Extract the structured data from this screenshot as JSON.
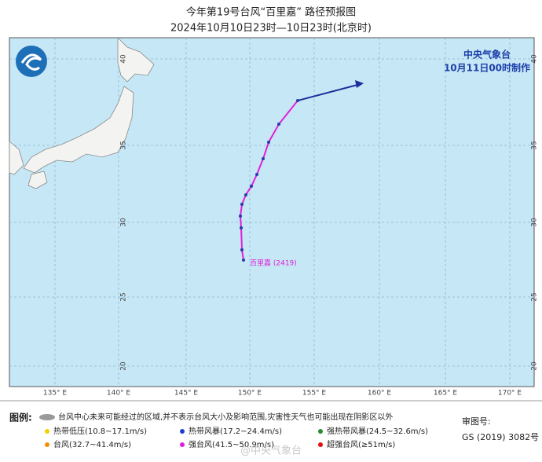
{
  "header": {
    "title": "今年第19号台风“百里嘉” 路径预报图",
    "subtitle": "2024年10月10日23时—10日23时(北京时)"
  },
  "map": {
    "agency": "中央气象台",
    "issued": "10月11日00时制作",
    "storm_label": "百里嘉 (2419)",
    "lon_labels": [
      "135° E",
      "140° E",
      "145° E",
      "150° E",
      "155° E",
      "160° E",
      "165° E",
      "170° E"
    ],
    "lat_labels": [
      "40",
      "35",
      "30",
      "25",
      "20"
    ]
  },
  "legend": {
    "heading": "图例:",
    "area_note": "台风中心未来可能经过的区域,并不表示台风大小及影响范围,灾害性天气也可能出现在阴影区以外",
    "items": [
      "热带低压(10.8~17.1m/s)",
      "热带风暴(17.2~24.4m/s)",
      "强热带风暴(24.5~32.6m/s)",
      "台风(32.7~41.4m/s)",
      "强台风(41.5~50.9m/s)",
      "超强台风(≥51m/s)"
    ],
    "review_label": "审图号:",
    "review_number": "GS (2019) 3082号",
    "watermark": "@中央气象台"
  }
}
